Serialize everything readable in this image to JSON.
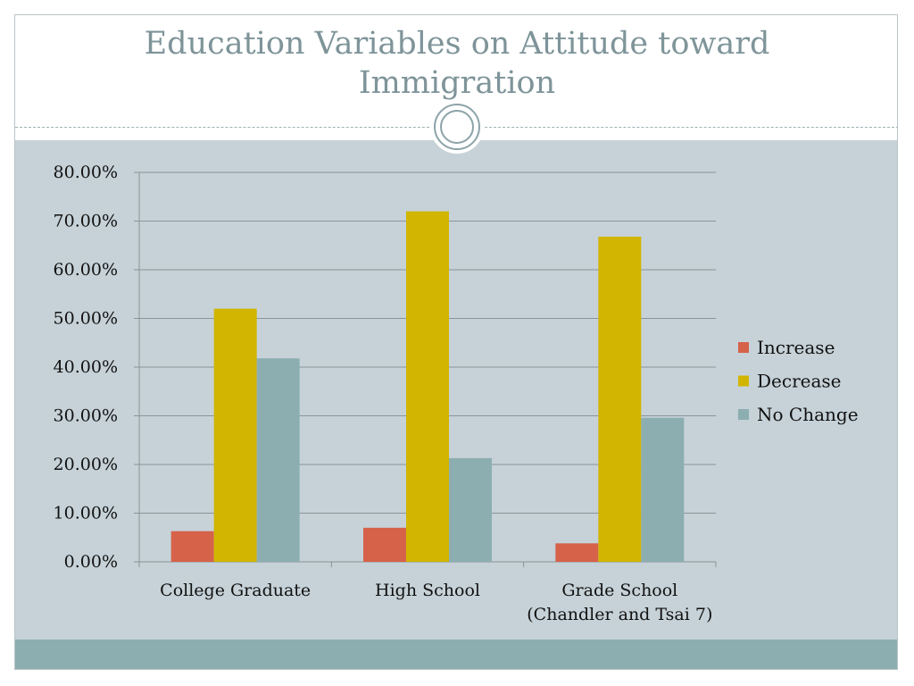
{
  "slide": {
    "title_line1": "Education Variables on Attitude toward",
    "title_line2": "Immigration"
  },
  "colors": {
    "Increase": "#d6624a",
    "Decrease": "#d1b500",
    "No Change": "#8daeb1",
    "content_bg": "#c6d2d8",
    "title": "#7e9499"
  },
  "chart_data": {
    "type": "bar",
    "title": "",
    "xlabel": "",
    "ylabel": "",
    "categories": [
      [
        "College Graduate"
      ],
      [
        "High School"
      ],
      [
        "Grade School",
        "(Chandler and Tsai 7)"
      ]
    ],
    "series": [
      {
        "name": "Increase",
        "values": [
          0.063,
          0.07,
          0.038
        ]
      },
      {
        "name": "Decrease",
        "values": [
          0.52,
          0.72,
          0.668
        ]
      },
      {
        "name": "No Change",
        "values": [
          0.418,
          0.213,
          0.296
        ]
      }
    ],
    "ylim": [
      0,
      0.8
    ],
    "yticks": [
      "0.00%",
      "10.00%",
      "20.00%",
      "30.00%",
      "40.00%",
      "50.00%",
      "60.00%",
      "70.00%",
      "80.00%"
    ],
    "grid": true,
    "legend_position": "right"
  }
}
